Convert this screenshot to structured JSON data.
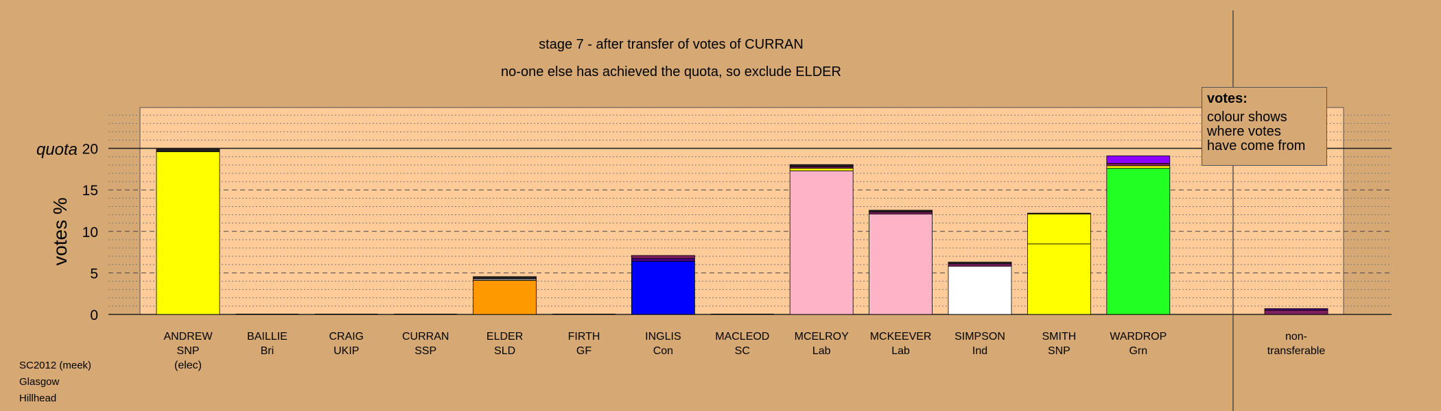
{
  "header": {
    "title": "stage 7 - after transfer of votes of CURRAN",
    "subtitle": "no-one else has achieved the quota, so exclude ELDER"
  },
  "legend": {
    "title": "votes:",
    "lines": [
      "colour shows",
      "where votes",
      "have come from"
    ]
  },
  "footer": {
    "line1": "SC2012 (meek)",
    "line2": "Glasgow",
    "line3": "Hillhead"
  },
  "colors": {
    "background": "#D5A874",
    "plot_area": "#FFCC99",
    "outline": "#000000"
  },
  "chart_data": {
    "type": "bar",
    "ylabel": "votes %",
    "ylim": [
      0,
      25
    ],
    "yticks": [
      0,
      5,
      10,
      15,
      20
    ],
    "quota": {
      "label": "quota",
      "value": 20
    },
    "grid": true,
    "candidates": [
      {
        "name": "ANDREW",
        "party": "SNP",
        "note": "(elec)",
        "segments": [
          {
            "value": 19.6,
            "color": "#FFFF00"
          },
          {
            "value": 0.3,
            "color": "#222222"
          }
        ]
      },
      {
        "name": "BAILLIE",
        "party": "Bri",
        "segments": []
      },
      {
        "name": "CRAIG",
        "party": "UKIP",
        "segments": []
      },
      {
        "name": "CURRAN",
        "party": "SSP",
        "segments": []
      },
      {
        "name": "ELDER",
        "party": "SLD",
        "segments": [
          {
            "value": 4.1,
            "color": "#FF9900"
          },
          {
            "value": 0.2,
            "color": "#999999"
          },
          {
            "value": 0.25,
            "color": "#222222"
          }
        ]
      },
      {
        "name": "FIRTH",
        "party": "GF",
        "segments": []
      },
      {
        "name": "INGLIS",
        "party": "Con",
        "segments": [
          {
            "value": 6.4,
            "color": "#0000FF"
          },
          {
            "value": 0.35,
            "color": "#4B0082"
          },
          {
            "value": 0.35,
            "color": "#7F1F5F"
          }
        ]
      },
      {
        "name": "MACLEOD",
        "party": "SC",
        "segments": []
      },
      {
        "name": "MCELROY",
        "party": "Lab",
        "segments": [
          {
            "value": 17.3,
            "color": "#FFB3C6"
          },
          {
            "value": 0.3,
            "color": "#FFFF00"
          },
          {
            "value": 0.2,
            "color": "#7F1F5F"
          },
          {
            "value": 0.25,
            "color": "#222222"
          }
        ]
      },
      {
        "name": "MCKEEVER",
        "party": "Lab",
        "segments": [
          {
            "value": 12.1,
            "color": "#FFB3C6"
          },
          {
            "value": 0.25,
            "color": "#7F1F5F"
          },
          {
            "value": 0.2,
            "color": "#222222"
          }
        ]
      },
      {
        "name": "SIMPSON",
        "party": "Ind",
        "segments": [
          {
            "value": 5.8,
            "color": "#FFFFFF"
          },
          {
            "value": 0.3,
            "color": "#7F1F5F"
          },
          {
            "value": 0.2,
            "color": "#222222"
          }
        ]
      },
      {
        "name": "SMITH",
        "party": "SNP",
        "segments": [
          {
            "value": 8.5,
            "color": "#FFFF00"
          },
          {
            "value": 3.6,
            "color": "#FFFF00"
          },
          {
            "value": 0.1,
            "color": "#222222"
          }
        ]
      },
      {
        "name": "WARDROP",
        "party": "Grn",
        "segments": [
          {
            "value": 17.6,
            "color": "#22FF22"
          },
          {
            "value": 0.3,
            "color": "#FFFF00"
          },
          {
            "value": 0.3,
            "color": "#7F1F5F"
          },
          {
            "value": 0.9,
            "color": "#8B00FF"
          }
        ]
      }
    ],
    "nontransferable": {
      "label_line1": "non-",
      "label_line2": "transferable",
      "segments": [
        {
          "value": 0.5,
          "color": "#7F1F5F"
        },
        {
          "value": 0.2,
          "color": "#4B0082"
        }
      ]
    }
  }
}
